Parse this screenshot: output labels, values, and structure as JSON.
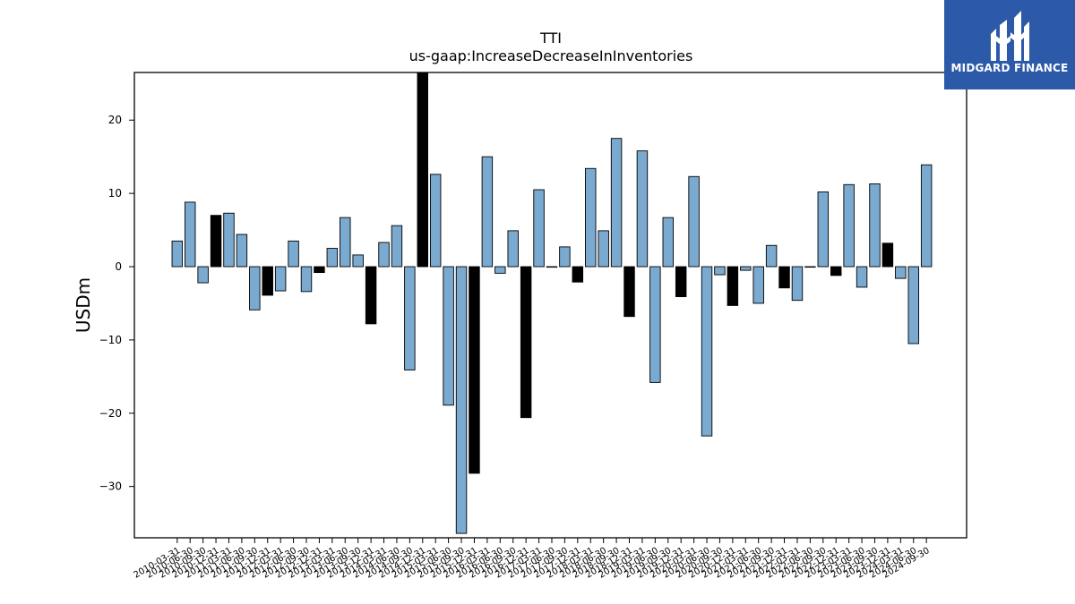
{
  "logo": {
    "text": "MIDGARD FINANCE",
    "bg_color": "#2c5aa8"
  },
  "chart_data": {
    "type": "bar",
    "title": "TTI",
    "subtitle": "us-gaap:IncreaseDecreaseInInventories",
    "xlabel": "",
    "ylabel": "USDm",
    "ylim": [
      -37.0,
      26.5
    ],
    "yticks": [
      -30,
      -20,
      -10,
      0,
      10,
      20
    ],
    "grid": false,
    "colors": {
      "default": "#7aaad0",
      "highlight": "#000000",
      "edge": "#000000"
    },
    "categories": [
      "2010-03-31",
      "2010-06-30",
      "2010-09-30",
      "2010-12-31",
      "2011-03-31",
      "2011-06-30",
      "2011-09-30",
      "2011-12-31",
      "2012-03-31",
      "2012-06-30",
      "2012-09-30",
      "2012-12-31",
      "2013-03-31",
      "2013-06-30",
      "2013-09-30",
      "2013-12-31",
      "2014-03-31",
      "2014-06-30",
      "2014-09-30",
      "2014-12-31",
      "2015-03-31",
      "2015-06-30",
      "2015-09-30",
      "2015-12-31",
      "2016-03-31",
      "2016-06-30",
      "2016-09-30",
      "2016-12-31",
      "2017-03-31",
      "2017-06-30",
      "2017-09-30",
      "2017-12-31",
      "2018-03-31",
      "2018-06-30",
      "2018-09-30",
      "2018-12-31",
      "2019-03-31",
      "2019-06-30",
      "2019-09-30",
      "2019-12-31",
      "2020-03-31",
      "2020-06-30",
      "2020-09-30",
      "2020-12-31",
      "2021-03-31",
      "2021-06-30",
      "2021-09-30",
      "2021-12-31",
      "2022-03-31",
      "2022-06-30",
      "2022-09-30",
      "2022-12-31",
      "2023-03-31",
      "2023-06-30",
      "2023-09-30",
      "2023-12-31",
      "2024-03-31",
      "2024-06-30",
      "2024-09-30"
    ],
    "values": [
      3.5,
      8.8,
      -2.2,
      7.0,
      7.3,
      4.4,
      -5.9,
      -3.9,
      -3.3,
      3.5,
      -3.4,
      -0.8,
      2.5,
      6.7,
      1.6,
      -7.8,
      3.3,
      5.6,
      -14.1,
      26.5,
      12.6,
      -18.9,
      -36.4,
      -28.2,
      15.0,
      -0.9,
      4.9,
      -20.6,
      10.5,
      0.0,
      2.7,
      -2.1,
      13.4,
      4.9,
      17.5,
      -6.8,
      15.8,
      -15.8,
      6.7,
      -4.1,
      12.3,
      -23.1,
      -1.1,
      -5.3,
      -0.5,
      -5.0,
      2.9,
      -2.9,
      -4.6,
      0.0,
      10.2,
      -1.2,
      11.2,
      -2.8,
      11.3,
      3.2,
      -1.6,
      -10.5,
      13.9
    ],
    "highlighted": [
      false,
      false,
      false,
      true,
      false,
      false,
      false,
      true,
      false,
      false,
      false,
      true,
      false,
      false,
      false,
      true,
      false,
      false,
      false,
      true,
      false,
      false,
      false,
      true,
      false,
      false,
      false,
      true,
      false,
      false,
      false,
      true,
      false,
      false,
      false,
      true,
      false,
      false,
      false,
      true,
      false,
      false,
      false,
      true,
      false,
      false,
      false,
      true,
      false,
      false,
      false,
      true,
      false,
      false,
      false,
      true,
      false,
      false,
      false
    ]
  }
}
